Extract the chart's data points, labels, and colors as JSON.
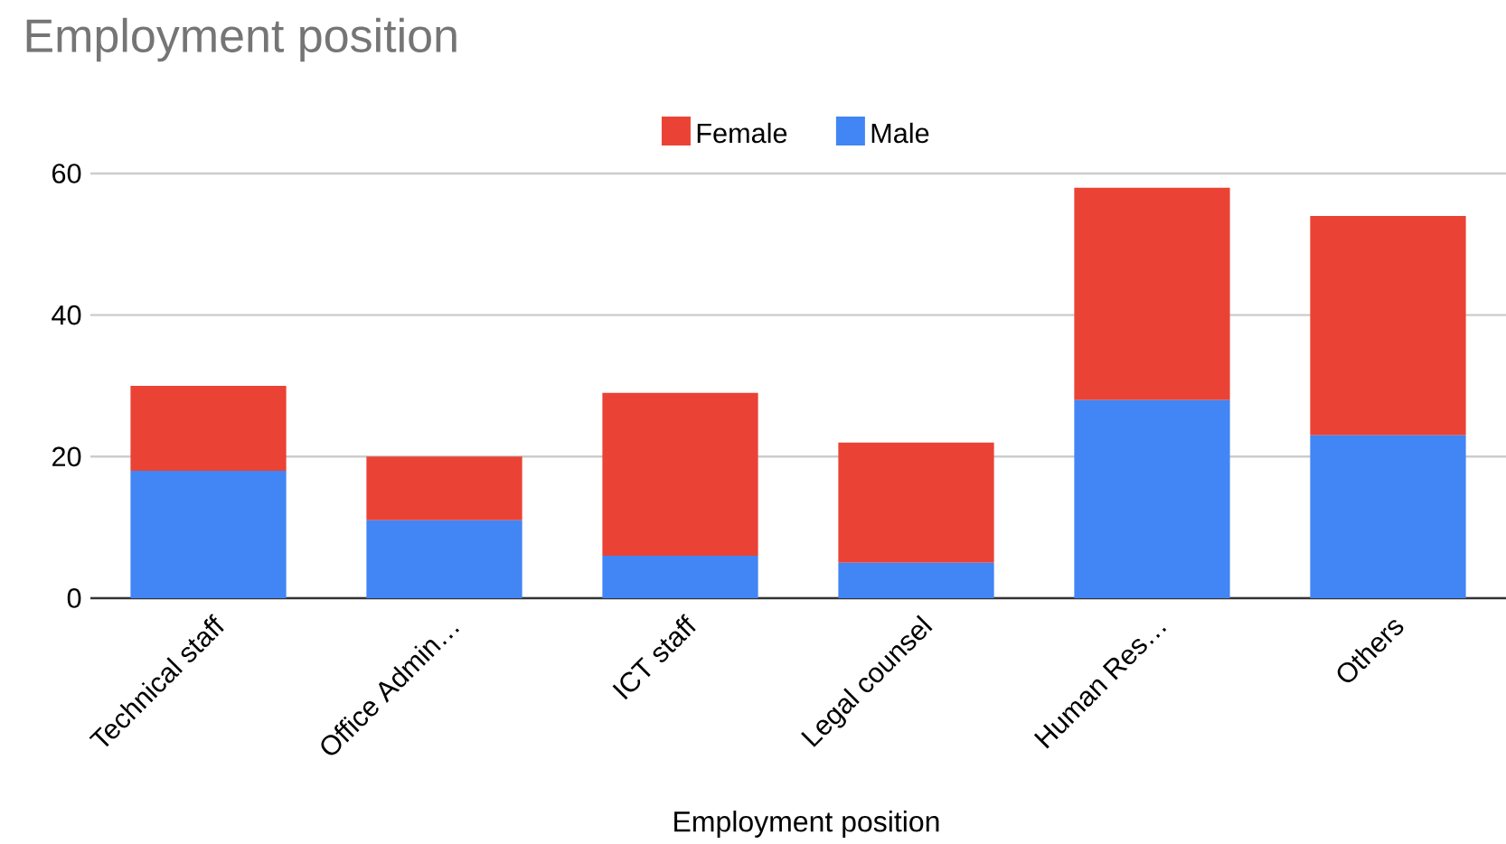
{
  "chart_data": {
    "type": "bar",
    "title": "Employment position",
    "xlabel": "Employment position",
    "categories": [
      "Technical staff",
      "Office Admin…",
      "ICT staff",
      "Legal counsel",
      "Human Res…",
      "Others"
    ],
    "stacked": true,
    "series": [
      {
        "name": "Male",
        "color": "#4285f4",
        "values": [
          18,
          11,
          6,
          5,
          28,
          23
        ]
      },
      {
        "name": "Female",
        "color": "#ea4335",
        "values": [
          12,
          9,
          23,
          17,
          30,
          31
        ]
      }
    ],
    "ylim": [
      0,
      60
    ],
    "yticks": [
      0,
      20,
      40,
      60
    ],
    "grid": "y",
    "legend": "top"
  }
}
